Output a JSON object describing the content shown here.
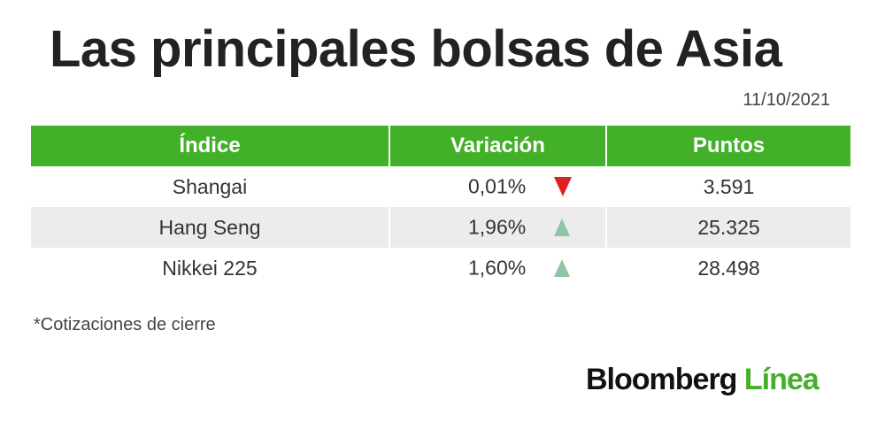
{
  "title": "Las principales bolsas de Asia",
  "date": "11/10/2021",
  "table": {
    "headers": [
      "Índice",
      "Variación",
      "Puntos"
    ],
    "rows": [
      {
        "index": "Shangai",
        "variation": "0,01%",
        "direction": "down",
        "points": "3.591"
      },
      {
        "index": "Hang Seng",
        "variation": "1,96%",
        "direction": "up",
        "points": "25.325"
      },
      {
        "index": "Nikkei 225",
        "variation": "1,60%",
        "direction": "up",
        "points": "28.498"
      }
    ]
  },
  "note": "*Cotizaciones de cierre",
  "logo": {
    "brand": "Bloomberg",
    "sub": "Línea"
  },
  "colors": {
    "header_green": "#43b02a",
    "down_red": "#e02020",
    "up_green": "#8fc4a6",
    "alt_row": "#ececec"
  },
  "chart_data": {
    "type": "table",
    "title": "Las principales bolsas de Asia",
    "subtitle": "11/10/2021",
    "columns": [
      "Índice",
      "Variación",
      "Puntos"
    ],
    "rows": [
      [
        "Shangai",
        "0,01%",
        "3.591"
      ],
      [
        "Hang Seng",
        "1,96%",
        "25.325"
      ],
      [
        "Nikkei 225",
        "1,60%",
        "28.498"
      ]
    ],
    "directions": [
      "down",
      "up",
      "up"
    ],
    "note": "*Cotizaciones de cierre"
  }
}
